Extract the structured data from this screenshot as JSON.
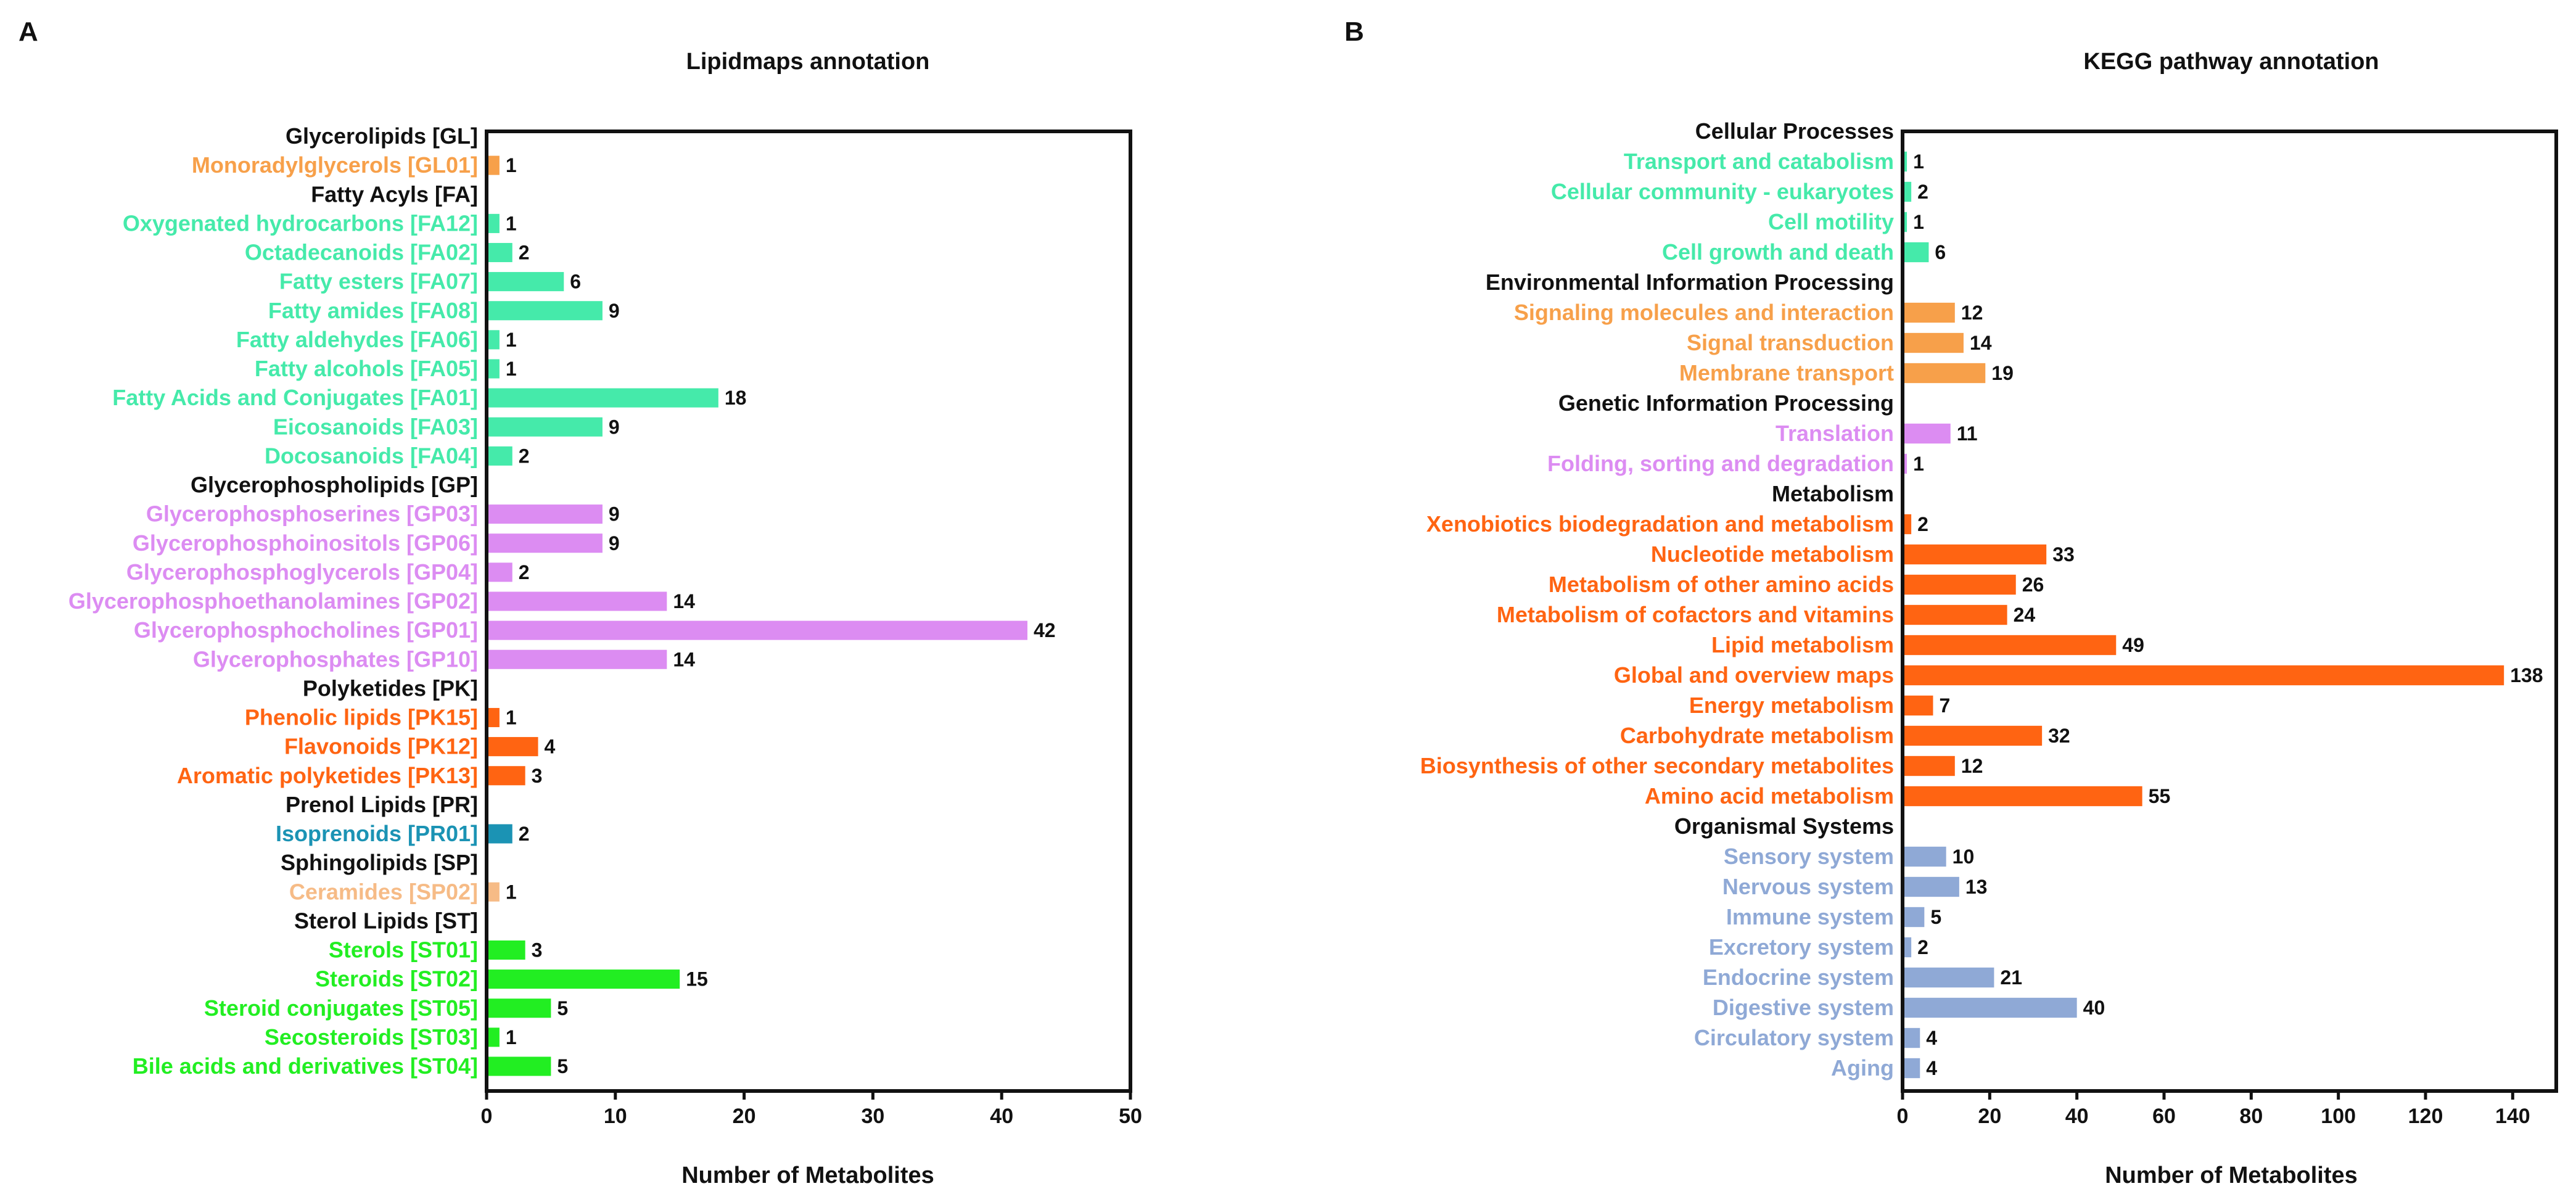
{
  "colors": {
    "header": "#111111",
    "gl": "#f7a04a",
    "fa": "#45eaaa",
    "gp": "#dc8cf2",
    "pk": "#ff6412",
    "pr": "#1b93b4",
    "sp": "#f6bb86",
    "st": "#22ee22",
    "cp": "#45eaaa",
    "env": "#f7a04a",
    "gen": "#dc8cf2",
    "met": "#ff6412",
    "org": "#8fa9d6"
  },
  "chart_data": [
    {
      "type": "bar",
      "orientation": "horizontal",
      "panel_label": "A",
      "title": "Lipidmaps annotation",
      "xlabel": "Number of Metabolites",
      "xlim": [
        0,
        50
      ],
      "xticks": [
        0,
        10,
        20,
        30,
        40,
        50
      ],
      "rows": [
        {
          "label": "Glycerolipids [GL]",
          "value": null,
          "color": "header"
        },
        {
          "label": "Monoradylglycerols [GL01]",
          "value": 1,
          "color": "gl"
        },
        {
          "label": "Fatty Acyls [FA]",
          "value": null,
          "color": "header"
        },
        {
          "label": "Oxygenated hydrocarbons [FA12]",
          "value": 1,
          "color": "fa"
        },
        {
          "label": "Octadecanoids [FA02]",
          "value": 2,
          "color": "fa"
        },
        {
          "label": "Fatty esters [FA07]",
          "value": 6,
          "color": "fa"
        },
        {
          "label": "Fatty amides [FA08]",
          "value": 9,
          "color": "fa"
        },
        {
          "label": "Fatty aldehydes [FA06]",
          "value": 1,
          "color": "fa"
        },
        {
          "label": "Fatty alcohols [FA05]",
          "value": 1,
          "color": "fa"
        },
        {
          "label": "Fatty Acids and Conjugates [FA01]",
          "value": 18,
          "color": "fa"
        },
        {
          "label": "Eicosanoids [FA03]",
          "value": 9,
          "color": "fa"
        },
        {
          "label": "Docosanoids [FA04]",
          "value": 2,
          "color": "fa"
        },
        {
          "label": "Glycerophospholipids [GP]",
          "value": null,
          "color": "header"
        },
        {
          "label": "Glycerophosphoserines [GP03]",
          "value": 9,
          "color": "gp"
        },
        {
          "label": "Glycerophosphoinositols [GP06]",
          "value": 9,
          "color": "gp"
        },
        {
          "label": "Glycerophosphoglycerols [GP04]",
          "value": 2,
          "color": "gp"
        },
        {
          "label": "Glycerophosphoethanolamines [GP02]",
          "value": 14,
          "color": "gp"
        },
        {
          "label": "Glycerophosphocholines [GP01]",
          "value": 42,
          "color": "gp"
        },
        {
          "label": "Glycerophosphates [GP10]",
          "value": 14,
          "color": "gp"
        },
        {
          "label": "Polyketides [PK]",
          "value": null,
          "color": "header"
        },
        {
          "label": "Phenolic lipids [PK15]",
          "value": 1,
          "color": "pk"
        },
        {
          "label": "Flavonoids [PK12]",
          "value": 4,
          "color": "pk"
        },
        {
          "label": "Aromatic polyketides [PK13]",
          "value": 3,
          "color": "pk"
        },
        {
          "label": "Prenol Lipids [PR]",
          "value": null,
          "color": "header"
        },
        {
          "label": "Isoprenoids [PR01]",
          "value": 2,
          "color": "pr"
        },
        {
          "label": "Sphingolipids [SP]",
          "value": null,
          "color": "header"
        },
        {
          "label": "Ceramides [SP02]",
          "value": 1,
          "color": "sp"
        },
        {
          "label": "Sterol Lipids [ST]",
          "value": null,
          "color": "header"
        },
        {
          "label": "Sterols [ST01]",
          "value": 3,
          "color": "st"
        },
        {
          "label": "Steroids [ST02]",
          "value": 15,
          "color": "st"
        },
        {
          "label": "Steroid conjugates [ST05]",
          "value": 5,
          "color": "st"
        },
        {
          "label": "Secosteroids [ST03]",
          "value": 1,
          "color": "st"
        },
        {
          "label": "Bile acids and derivatives [ST04]",
          "value": 5,
          "color": "st"
        }
      ]
    },
    {
      "type": "bar",
      "orientation": "horizontal",
      "panel_label": "B",
      "title": "KEGG pathway annotation",
      "xlabel": "Number of Metabolites",
      "xlim": [
        0,
        150
      ],
      "xticks": [
        0,
        20,
        40,
        60,
        80,
        100,
        120,
        140
      ],
      "rows": [
        {
          "label": "Cellular Processes",
          "value": null,
          "color": "header"
        },
        {
          "label": "Transport and catabolism",
          "value": 1,
          "color": "cp"
        },
        {
          "label": "Cellular community - eukaryotes",
          "value": 2,
          "color": "cp"
        },
        {
          "label": "Cell motility",
          "value": 1,
          "color": "cp"
        },
        {
          "label": "Cell growth and death",
          "value": 6,
          "color": "cp"
        },
        {
          "label": "Environmental Information Processing",
          "value": null,
          "color": "header"
        },
        {
          "label": "Signaling molecules and interaction",
          "value": 12,
          "color": "env"
        },
        {
          "label": "Signal transduction",
          "value": 14,
          "color": "env"
        },
        {
          "label": "Membrane transport",
          "value": 19,
          "color": "env"
        },
        {
          "label": "Genetic Information Processing",
          "value": null,
          "color": "header"
        },
        {
          "label": "Translation",
          "value": 11,
          "color": "gen"
        },
        {
          "label": "Folding, sorting and degradation",
          "value": 1,
          "color": "gen"
        },
        {
          "label": "Metabolism",
          "value": null,
          "color": "header"
        },
        {
          "label": "Xenobiotics biodegradation and metabolism",
          "value": 2,
          "color": "met"
        },
        {
          "label": "Nucleotide metabolism",
          "value": 33,
          "color": "met"
        },
        {
          "label": "Metabolism of other amino acids",
          "value": 26,
          "color": "met"
        },
        {
          "label": "Metabolism of cofactors and vitamins",
          "value": 24,
          "color": "met"
        },
        {
          "label": "Lipid metabolism",
          "value": 49,
          "color": "met"
        },
        {
          "label": "Global and overview maps",
          "value": 138,
          "color": "met"
        },
        {
          "label": "Energy metabolism",
          "value": 7,
          "color": "met"
        },
        {
          "label": "Carbohydrate metabolism",
          "value": 32,
          "color": "met"
        },
        {
          "label": "Biosynthesis of other secondary metabolites",
          "value": 12,
          "color": "met"
        },
        {
          "label": "Amino acid metabolism",
          "value": 55,
          "color": "met"
        },
        {
          "label": "Organismal Systems",
          "value": null,
          "color": "header"
        },
        {
          "label": "Sensory system",
          "value": 10,
          "color": "org"
        },
        {
          "label": "Nervous system",
          "value": 13,
          "color": "org"
        },
        {
          "label": "Immune system",
          "value": 5,
          "color": "org"
        },
        {
          "label": "Excretory system",
          "value": 2,
          "color": "org"
        },
        {
          "label": "Endocrine system",
          "value": 21,
          "color": "org"
        },
        {
          "label": "Digestive system",
          "value": 40,
          "color": "org"
        },
        {
          "label": "Circulatory system",
          "value": 4,
          "color": "org"
        },
        {
          "label": "Aging",
          "value": 4,
          "color": "org"
        }
      ]
    }
  ]
}
